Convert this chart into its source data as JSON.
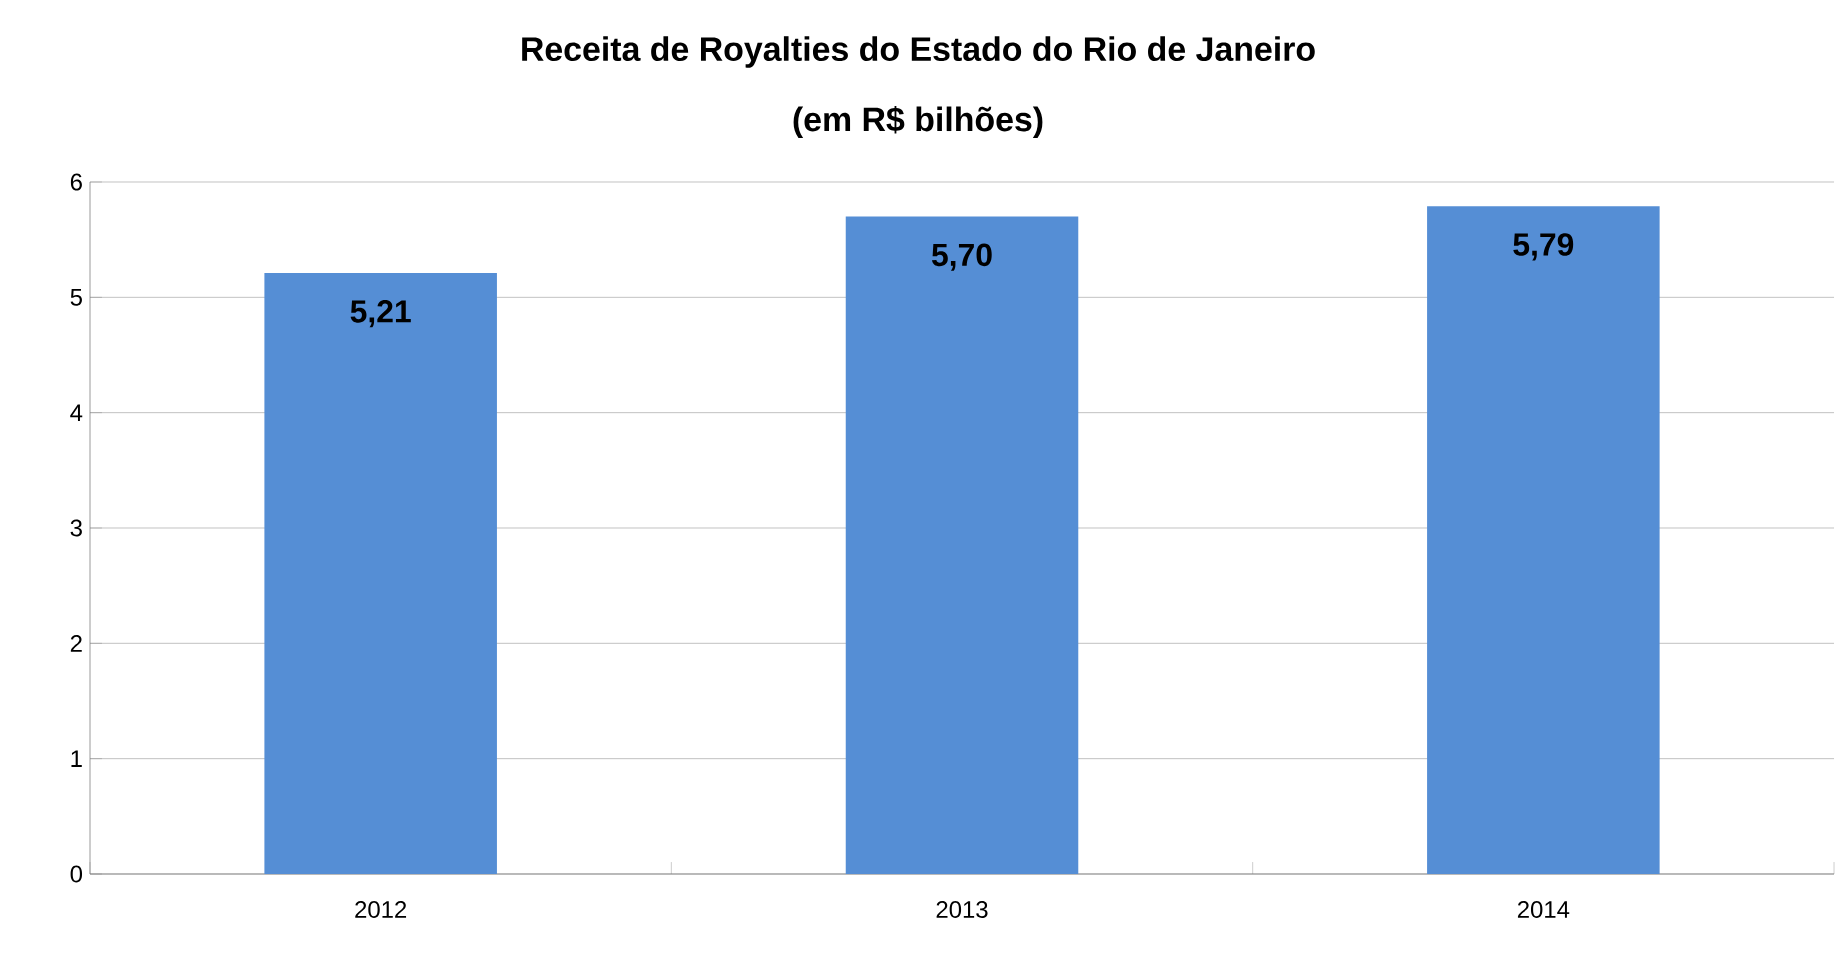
{
  "chart_data": {
    "type": "bar",
    "title": "Receita de Royalties do Estado do Rio de Janeiro",
    "subtitle": "(em R$ bilhões)",
    "categories": [
      "2012",
      "2013",
      "2014"
    ],
    "values": [
      5.21,
      5.7,
      5.79
    ],
    "value_labels": [
      "5,21",
      "5,70",
      "5,79"
    ],
    "color": "#558ed5",
    "ylim": [
      0,
      6
    ],
    "yticks": [
      0,
      1,
      2,
      3,
      4,
      5,
      6
    ],
    "grid": "y"
  }
}
